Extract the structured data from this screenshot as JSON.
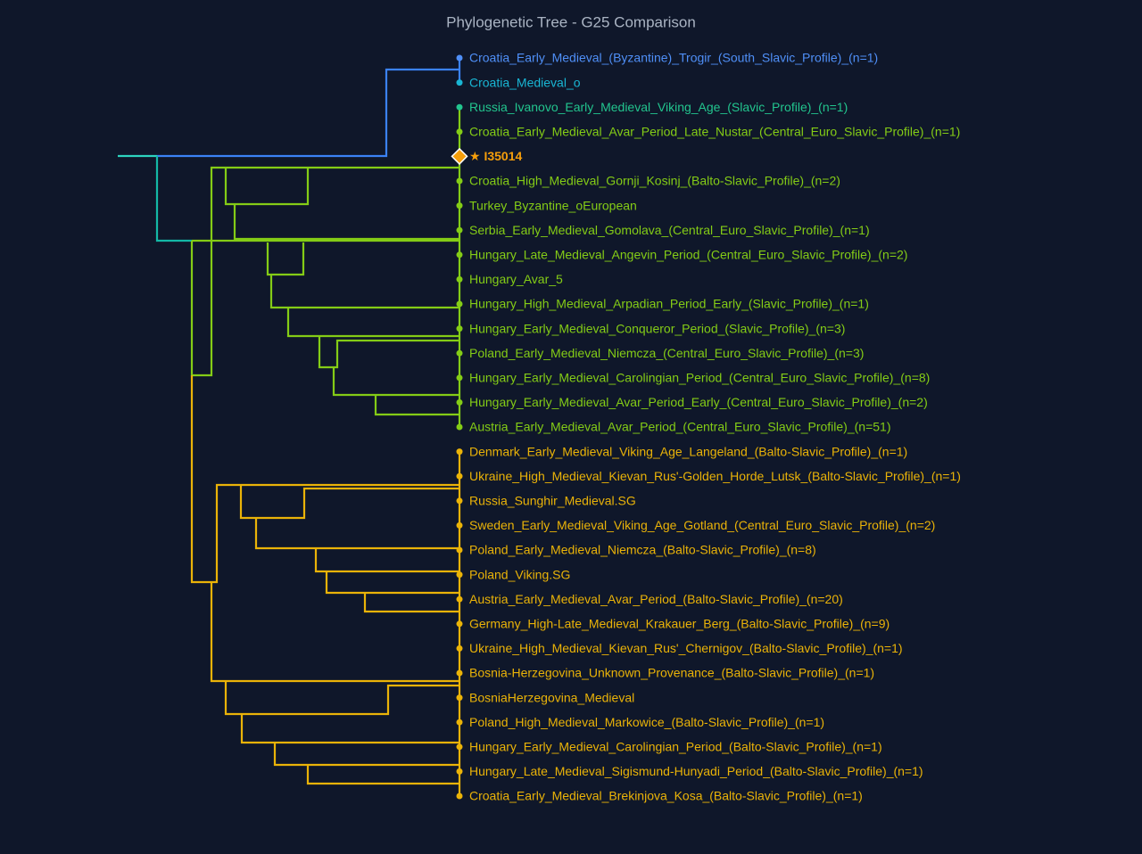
{
  "title": "Phylogenetic Tree - G25 Comparison",
  "nodes": [
    {
      "label": "Croatia_Early_Medieval_(Byzantine)_Trogir_(South_Slavic_Profile)_(n=1)",
      "color": "#4f8ff7"
    },
    {
      "label": "Croatia_Medieval_o",
      "color": "#19b6d4"
    },
    {
      "label": "Russia_Ivanovo_Early_Medieval_Viking_Age_(Slavic_Profile)_(n=1)",
      "color": "#22c58e"
    },
    {
      "label": "Croatia_Early_Medieval_Avar_Period_Late_Nustar_(Central_Euro_Slavic_Profile)_(n=1)",
      "color": "#84cc16"
    },
    {
      "label": "★ I35014",
      "color": "#f59e0b"
    },
    {
      "label": "Croatia_High_Medieval_Gornji_Kosinj_(Balto-Slavic_Profile)_(n=2)",
      "color": "#84cc16"
    },
    {
      "label": "Turkey_Byzantine_oEuropean",
      "color": "#84cc16"
    },
    {
      "label": "Serbia_Early_Medieval_Gomolava_(Central_Euro_Slavic_Profile)_(n=1)",
      "color": "#84cc16"
    },
    {
      "label": "Hungary_Late_Medieval_Angevin_Period_(Central_Euro_Slavic_Profile)_(n=2)",
      "color": "#84cc16"
    },
    {
      "label": "Hungary_Avar_5",
      "color": "#84cc16"
    },
    {
      "label": "Hungary_High_Medieval_Arpadian_Period_Early_(Slavic_Profile)_(n=1)",
      "color": "#84cc16"
    },
    {
      "label": "Hungary_Early_Medieval_Conqueror_Period_(Slavic_Profile)_(n=3)",
      "color": "#84cc16"
    },
    {
      "label": "Poland_Early_Medieval_Niemcza_(Central_Euro_Slavic_Profile)_(n=3)",
      "color": "#84cc16"
    },
    {
      "label": "Hungary_Early_Medieval_Carolingian_Period_(Central_Euro_Slavic_Profile)_(n=8)",
      "color": "#84cc16"
    },
    {
      "label": "Hungary_Early_Medieval_Avar_Period_Early_(Central_Euro_Slavic_Profile)_(n=2)",
      "color": "#84cc16"
    },
    {
      "label": "Austria_Early_Medieval_Avar_Period_(Central_Euro_Slavic_Profile)_(n=51)",
      "color": "#84cc16"
    },
    {
      "label": "Denmark_Early_Medieval_Viking_Age_Langeland_(Balto-Slavic_Profile)_(n=1)",
      "color": "#eab308"
    },
    {
      "label": "Ukraine_High_Medieval_Kievan_Rus'-Golden_Horde_Lutsk_(Balto-Slavic_Profile)_(n=1)",
      "color": "#eab308"
    },
    {
      "label": "Russia_Sunghir_Medieval.SG",
      "color": "#eab308"
    },
    {
      "label": "Sweden_Early_Medieval_Viking_Age_Gotland_(Central_Euro_Slavic_Profile)_(n=2)",
      "color": "#eab308"
    },
    {
      "label": "Poland_Early_Medieval_Niemcza_(Balto-Slavic_Profile)_(n=8)",
      "color": "#eab308"
    },
    {
      "label": "Poland_Viking.SG",
      "color": "#eab308"
    },
    {
      "label": "Austria_Early_Medieval_Avar_Period_(Balto-Slavic_Profile)_(n=20)",
      "color": "#eab308"
    },
    {
      "label": "Germany_High-Late_Medieval_Krakauer_Berg_(Balto-Slavic_Profile)_(n=9)",
      "color": "#eab308"
    },
    {
      "label": "Ukraine_High_Medieval_Kievan_Rus'_Chernigov_(Balto-Slavic_Profile)_(n=1)",
      "color": "#eab308"
    },
    {
      "label": "Bosnia-Herzegovina_Unknown_Provenance_(Balto-Slavic_Profile)_(n=1)",
      "color": "#eab308"
    },
    {
      "label": "BosniaHerzegovina_Medieval",
      "color": "#eab308"
    },
    {
      "label": "Poland_High_Medieval_Markowice_(Balto-Slavic_Profile)_(n=1)",
      "color": "#eab308"
    },
    {
      "label": "Hungary_Early_Medieval_Carolingian_Period_(Balto-Slavic_Profile)_(n=1)",
      "color": "#eab308"
    },
    {
      "label": "Hungary_Late_Medieval_Sigismund-Hunyadi_Period_(Balto-Slavic_Profile)_(n=1)",
      "color": "#eab308"
    },
    {
      "label": "Croatia_Early_Medieval_Brekinjova_Kosa_(Balto-Slavic_Profile)_(n=1)",
      "color": "#eab308"
    }
  ]
}
